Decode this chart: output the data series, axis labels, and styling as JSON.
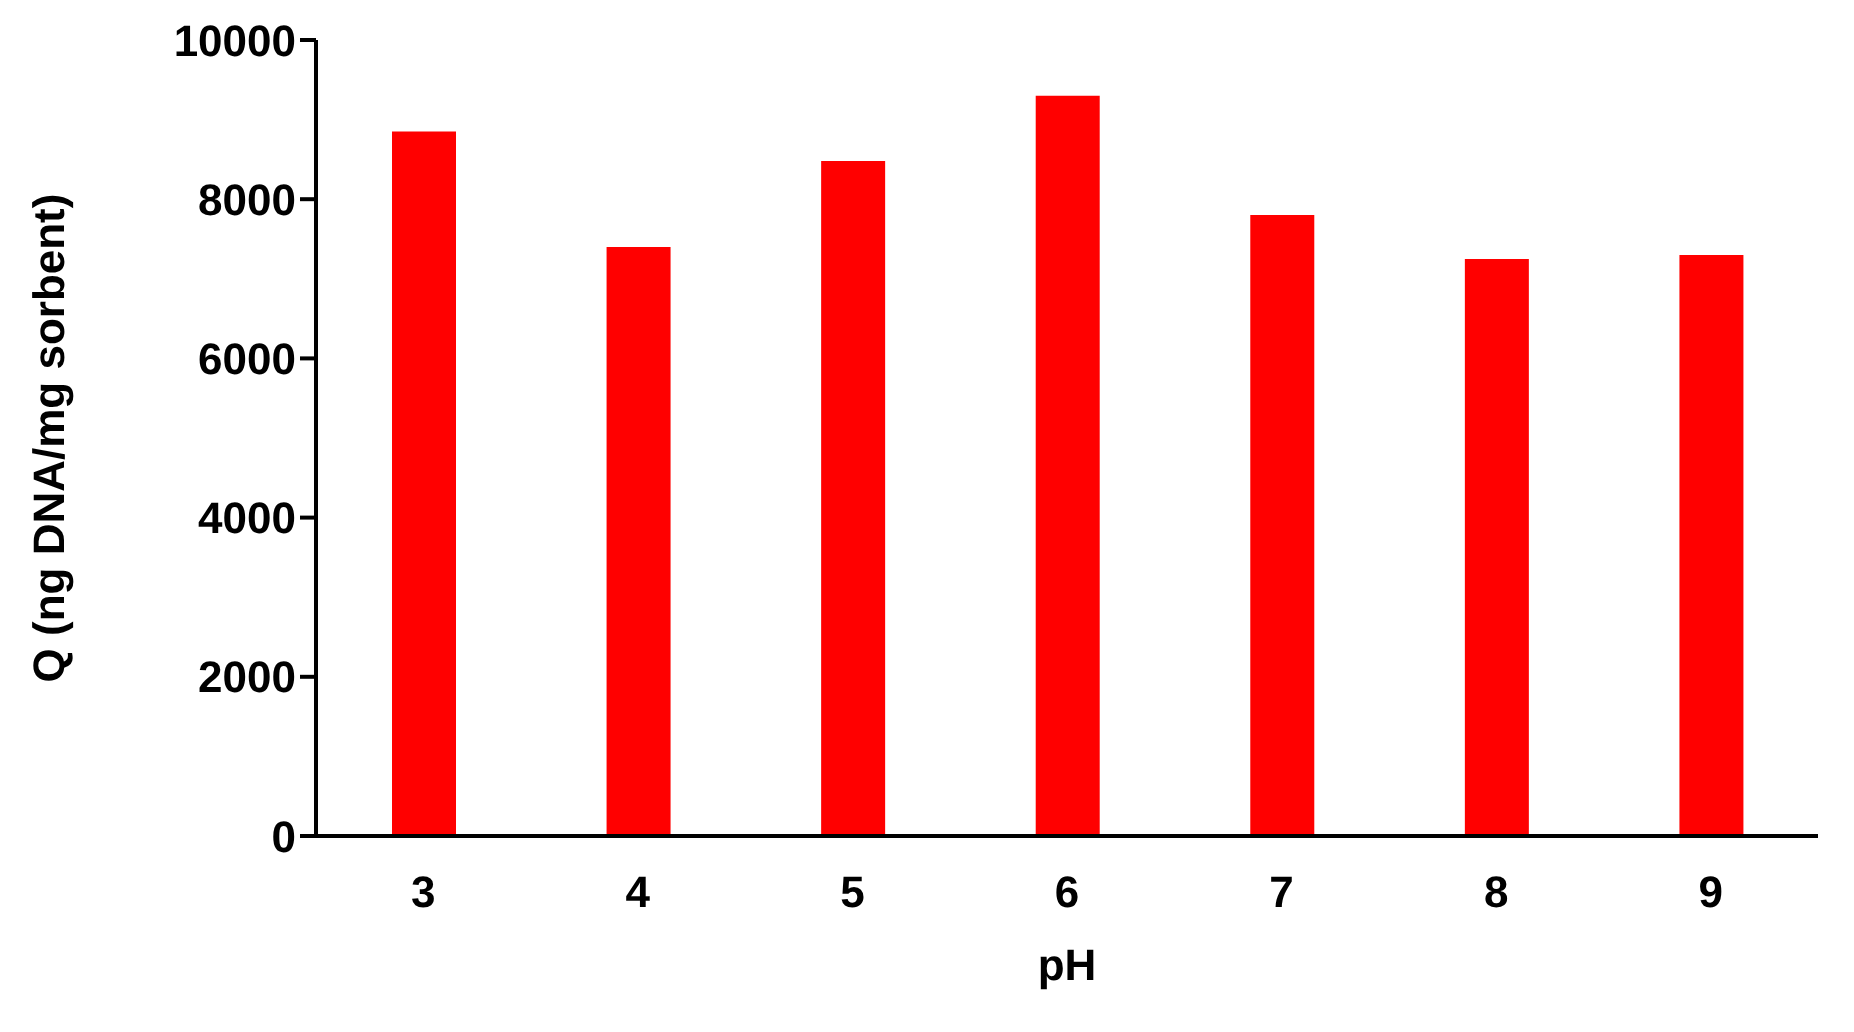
{
  "chart_data": {
    "type": "bar",
    "xlabel": "pH",
    "ylabel": "Q (ng DNA/mg sorbent)",
    "categories": [
      "3",
      "4",
      "5",
      "6",
      "7",
      "8",
      "9"
    ],
    "values": [
      8850,
      7400,
      8480,
      9300,
      7800,
      7250,
      7300
    ],
    "color": "#ff0000",
    "ylim": [
      0,
      10000
    ],
    "yticks": [
      0,
      2000,
      4000,
      6000,
      8000,
      10000
    ],
    "grid": false
  }
}
